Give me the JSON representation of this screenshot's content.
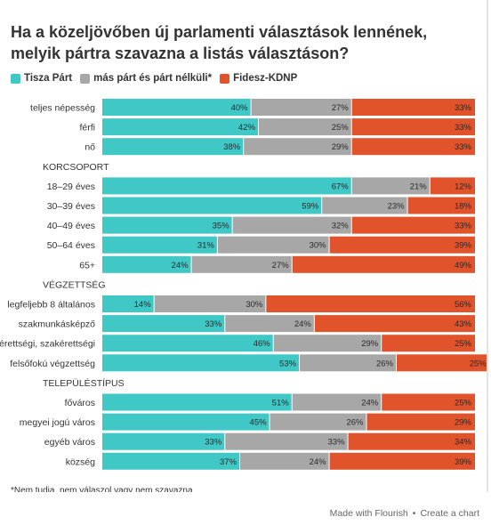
{
  "title": "Ha a közeljövőben új parlamenti választások lennének, melyik pártra szavazna a listás választáson?",
  "colors": {
    "tisza": "#3fc8c6",
    "mas": "#a7a7a7",
    "fidesz": "#e0532b"
  },
  "chart_data": {
    "type": "bar",
    "stacked": true,
    "orientation": "horizontal",
    "normalized_to": 100,
    "series": [
      {
        "name": "Tisza Párt",
        "color": "#3fc8c6",
        "values": [
          40,
          42,
          38,
          null,
          67,
          59,
          35,
          31,
          24,
          null,
          14,
          33,
          46,
          53,
          null,
          51,
          45,
          33,
          37
        ]
      },
      {
        "name": "más párt és párt nélküli*",
        "color": "#a7a7a7",
        "values": [
          27,
          25,
          29,
          null,
          21,
          23,
          32,
          30,
          27,
          null,
          30,
          24,
          29,
          26,
          null,
          24,
          26,
          33,
          24
        ]
      },
      {
        "name": "Fidesz-KDNP",
        "color": "#e0532b",
        "values": [
          33,
          33,
          33,
          null,
          12,
          18,
          33,
          39,
          49,
          null,
          56,
          43,
          25,
          25,
          null,
          25,
          29,
          34,
          39
        ]
      }
    ],
    "categories": [
      "teljes népesség",
      "férfi",
      "nő",
      "KORCSOPORT",
      "18–29 éves",
      "30–39 éves",
      "40–49 éves",
      "50–64 éves",
      "65+",
      "VÉGZETTSÉG",
      "legfeljebb 8 általános",
      "szakmunkásképző",
      "érettségi, szakérettségi",
      "felsőfokú végzettség",
      "TELEPÜLÉSTÍPUS",
      "főváros",
      "megyei jogú város",
      "egyéb város",
      "község"
    ],
    "group_headers": [
      "KORCSOPORT",
      "VÉGZETTSÉG",
      "TELEPÜLÉSTÍPUS"
    ],
    "value_suffix": "%",
    "legend_position": "top-left"
  },
  "footnote": "*Nem tudja, nem válaszol vagy nem szavazna",
  "flourish": {
    "made_with": "Made with Flourish",
    "separator": "•",
    "create": "Create a chart"
  }
}
